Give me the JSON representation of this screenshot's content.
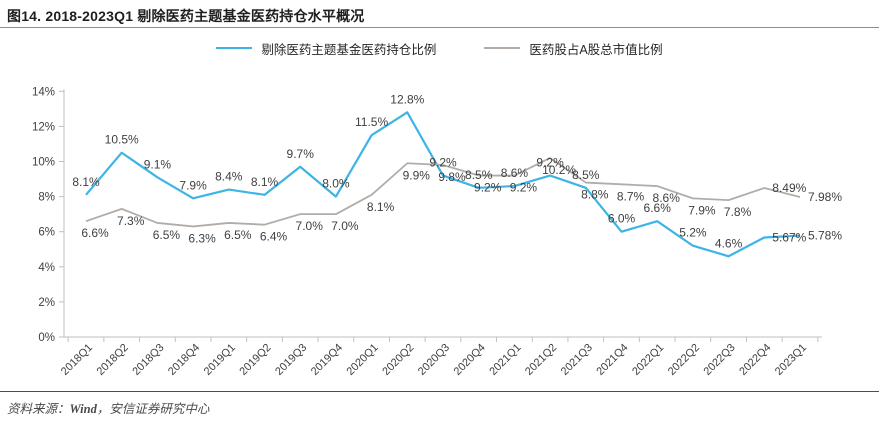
{
  "header": {
    "title": "图14. 2018-2023Q1 剔除医药主题基金医药持仓水平概况"
  },
  "legend": [
    {
      "label": "剔除医药主题基金医药持仓比例",
      "color": "#3db4e6"
    },
    {
      "label": "医药股占A股总市值比例",
      "color": "#b3aca6"
    }
  ],
  "chart_data": {
    "type": "line",
    "title": "图14. 2018-2023Q1 剔除医药主题基金医药持仓水平概况",
    "categories": [
      "2018Q1",
      "2018Q2",
      "2018Q3",
      "2018Q4",
      "2019Q1",
      "2019Q2",
      "2019Q3",
      "2019Q4",
      "2020Q1",
      "2020Q2",
      "2020Q3",
      "2020Q4",
      "2021Q1",
      "2021Q2",
      "2021Q3",
      "2021Q4",
      "2022Q1",
      "2022Q2",
      "2022Q3",
      "2022Q4",
      "2023Q1"
    ],
    "series": [
      {
        "name": "剔除医药主题基金医药持仓比例",
        "color": "#3db4e6",
        "values": [
          8.1,
          10.5,
          9.1,
          7.9,
          8.4,
          8.1,
          9.7,
          8.0,
          11.5,
          12.8,
          9.2,
          8.5,
          8.6,
          9.2,
          8.5,
          6.0,
          6.6,
          5.2,
          4.6,
          5.67,
          5.78
        ],
        "labels": [
          "8.1%",
          "10.5%",
          "9.1%",
          "7.9%",
          "8.4%",
          "8.1%",
          "9.7%",
          "8.0%",
          "11.5%",
          "12.8%",
          "9.2%",
          "8.5%",
          "8.6%",
          "9.2%",
          "8.5%",
          "6.0%",
          "6.6%",
          "5.2%",
          "4.6%",
          "5.67%",
          "5.78%"
        ]
      },
      {
        "name": "医药股占A股总市值比例",
        "color": "#b3aca6",
        "values": [
          6.6,
          7.3,
          6.5,
          6.3,
          6.5,
          6.4,
          7.0,
          7.0,
          8.1,
          9.9,
          9.8,
          9.2,
          9.2,
          10.2,
          8.8,
          8.7,
          8.6,
          7.9,
          7.8,
          8.49,
          7.98
        ],
        "labels": [
          "6.6%",
          "7.3%",
          "6.5%",
          "6.3%",
          "6.5%",
          "6.4%",
          "7.0%",
          "7.0%",
          "8.1%",
          "9.9%",
          "9.8%",
          "9.2%",
          "9.2%",
          "10.2%",
          "8.8%",
          "8.7%",
          "8.6%",
          "7.9%",
          "7.8%",
          "8.49%",
          "7.98%"
        ]
      }
    ],
    "y_ticks": [
      0,
      2,
      4,
      6,
      8,
      10,
      12,
      14
    ],
    "y_tick_labels": [
      "0%",
      "2%",
      "4%",
      "6%",
      "8%",
      "10%",
      "12%",
      "14%"
    ],
    "ylim": [
      0,
      14
    ],
    "grid": false,
    "legend_position": "top"
  },
  "footer": {
    "source_label": "资料来源：",
    "source_bold": "Wind",
    "source_rest": "，安信证券研究中心"
  }
}
